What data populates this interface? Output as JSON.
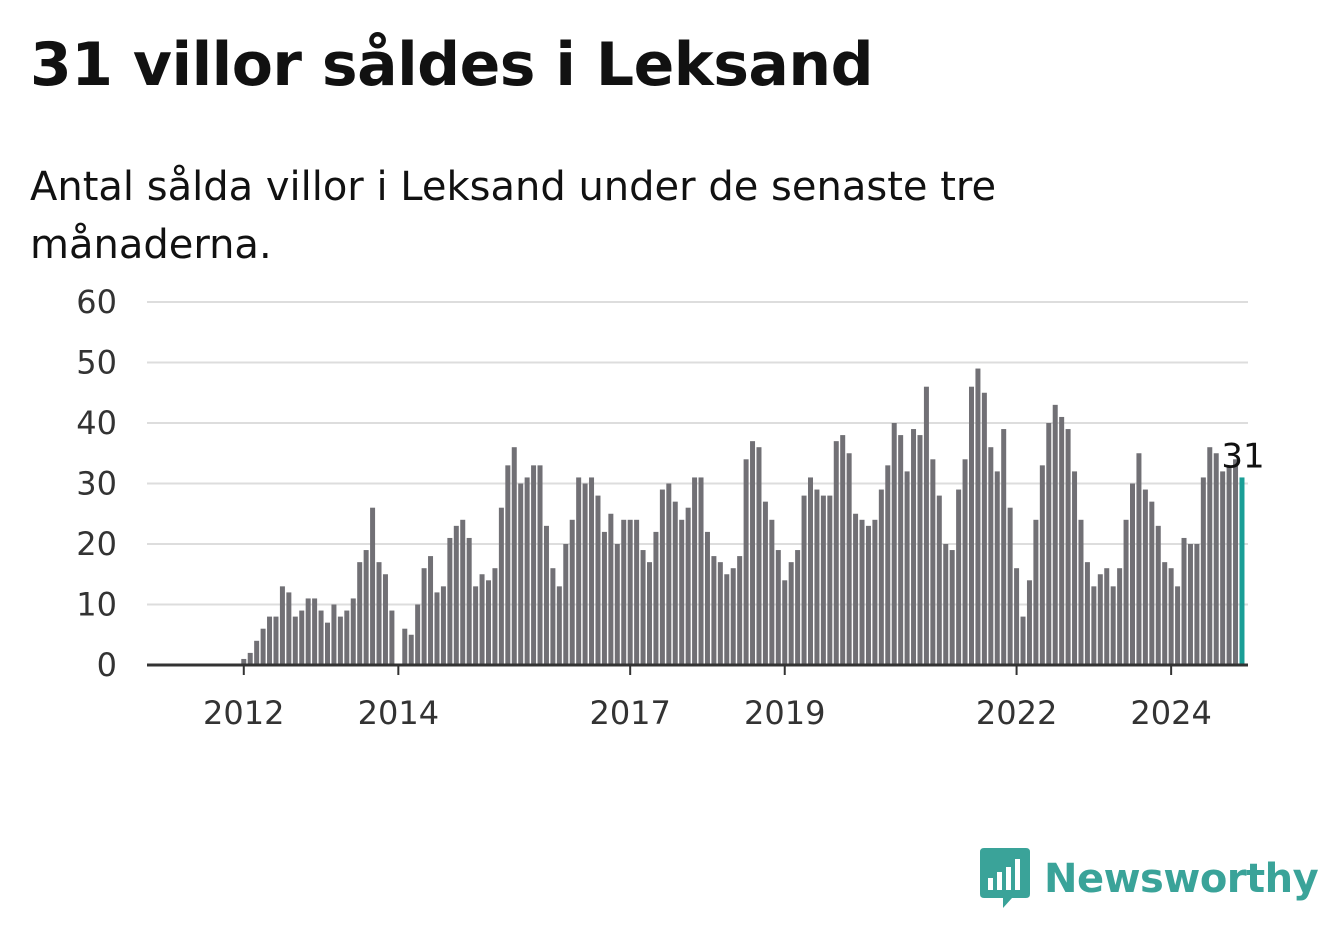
{
  "title": "31 villor såldes i Leksand",
  "subtitle": "Antal sålda villor i Leksand under de senaste tre månaderna.",
  "brand": {
    "name": "Newsworthy",
    "icon": "newsworthy-logo-icon",
    "color": "#3aa399"
  },
  "colors": {
    "bar": "#717075",
    "highlight": "#1a9e96",
    "grid": "#dddddd",
    "axis": "#333333"
  },
  "chart_data": {
    "type": "bar",
    "title": "",
    "xlabel": "",
    "ylabel": "",
    "ylim": [
      0,
      60
    ],
    "yticks": [
      0,
      10,
      20,
      30,
      40,
      50,
      60
    ],
    "xlim": [
      "2011-01",
      "2025-06"
    ],
    "xticks": [
      {
        "label": "2012",
        "x": "2012-01"
      },
      {
        "label": "2014",
        "x": "2014-01"
      },
      {
        "label": "2017",
        "x": "2017-01"
      },
      {
        "label": "2019",
        "x": "2019-01"
      },
      {
        "label": "2022",
        "x": "2022-01"
      },
      {
        "label": "2024",
        "x": "2024-01"
      }
    ],
    "grid": true,
    "legend": "none",
    "start_month": "2011-01",
    "values": [
      0,
      0,
      0,
      0,
      0,
      0,
      0,
      0,
      0,
      0,
      0,
      0,
      1,
      2,
      4,
      6,
      8,
      8,
      13,
      12,
      8,
      9,
      11,
      11,
      9,
      7,
      10,
      8,
      9,
      11,
      17,
      19,
      26,
      17,
      15,
      9,
      0,
      6,
      5,
      10,
      16,
      18,
      12,
      13,
      21,
      23,
      24,
      21,
      13,
      15,
      14,
      16,
      26,
      33,
      36,
      30,
      31,
      33,
      33,
      23,
      16,
      13,
      20,
      24,
      31,
      30,
      31,
      28,
      22,
      25,
      20,
      24,
      24,
      24,
      19,
      17,
      22,
      29,
      30,
      27,
      24,
      26,
      31,
      31,
      22,
      18,
      17,
      15,
      16,
      18,
      34,
      37,
      36,
      27,
      24,
      19,
      14,
      17,
      19,
      28,
      31,
      29,
      28,
      28,
      37,
      38,
      35,
      25,
      24,
      23,
      24,
      29,
      33,
      40,
      38,
      32,
      39,
      38,
      46,
      34,
      28,
      20,
      19,
      29,
      34,
      46,
      49,
      45,
      36,
      32,
      39,
      26,
      16,
      8,
      14,
      24,
      33,
      40,
      43,
      41,
      39,
      32,
      24,
      17,
      13,
      15,
      16,
      13,
      16,
      24,
      30,
      35,
      29,
      27,
      23,
      17,
      16,
      13,
      21,
      20,
      20,
      31,
      36,
      35,
      32,
      33,
      34,
      31
    ],
    "highlight": {
      "x": "2024-12",
      "value": 31,
      "label": "31"
    }
  }
}
